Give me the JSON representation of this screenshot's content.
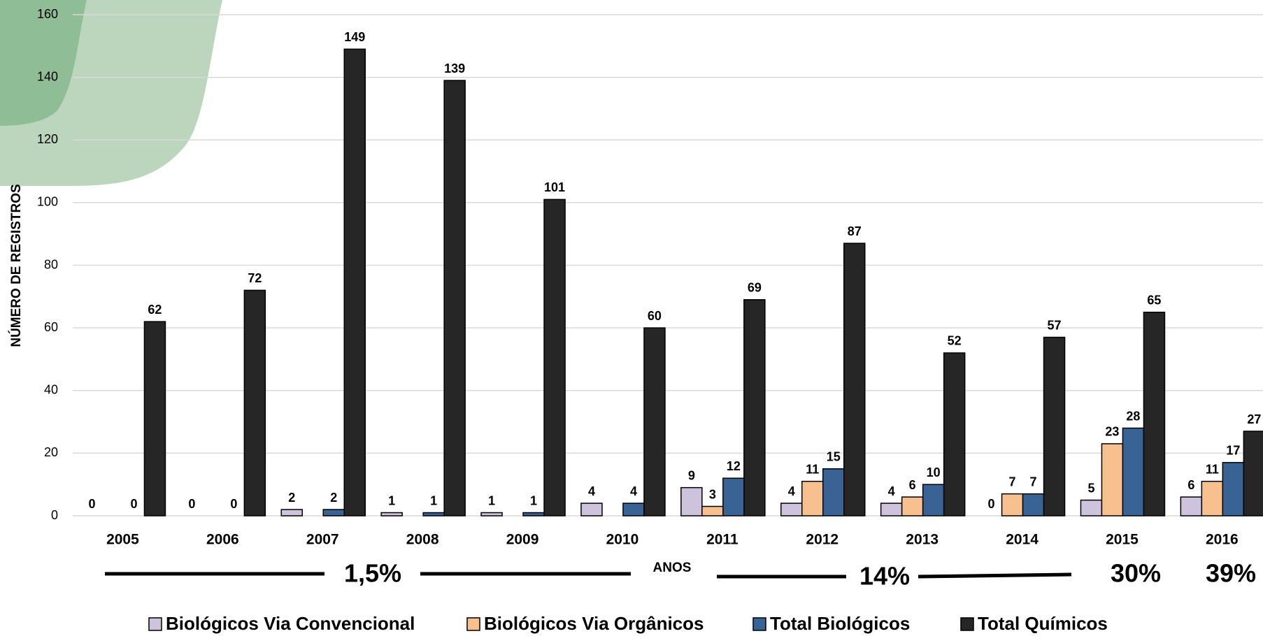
{
  "chart_data": {
    "type": "bar",
    "y_label": "NÚMERO DE REGISTROS",
    "x_label": "ANOS",
    "categories": [
      "2005",
      "2006",
      "2007",
      "2008",
      "2009",
      "2010",
      "2011",
      "2012",
      "2013",
      "2014",
      "2015",
      "2016"
    ],
    "series": [
      {
        "name": "Biológicos Via Convencional",
        "color": "#cdc3dc",
        "values": [
          0,
          0,
          2,
          1,
          1,
          4,
          9,
          4,
          4,
          0,
          5,
          6
        ]
      },
      {
        "name": "Biológicos Via Orgânicos",
        "color": "#f9c08f",
        "values": [
          null,
          null,
          null,
          null,
          null,
          null,
          3,
          11,
          6,
          7,
          23,
          11
        ]
      },
      {
        "name": "Total Biológicos",
        "color": "#3a6395",
        "values": [
          0,
          0,
          2,
          1,
          1,
          4,
          12,
          15,
          10,
          7,
          28,
          17
        ]
      },
      {
        "name": "Total Químicos",
        "color": "#262626",
        "values": [
          62,
          72,
          149,
          139,
          101,
          60,
          69,
          87,
          52,
          57,
          65,
          27
        ]
      }
    ],
    "ylim": [
      0,
      160
    ],
    "yticks": [
      0,
      20,
      40,
      60,
      80,
      100,
      120,
      140,
      160
    ],
    "grid": true,
    "annotations": [
      "1,5%",
      "14%",
      "30%",
      "39%"
    ]
  }
}
